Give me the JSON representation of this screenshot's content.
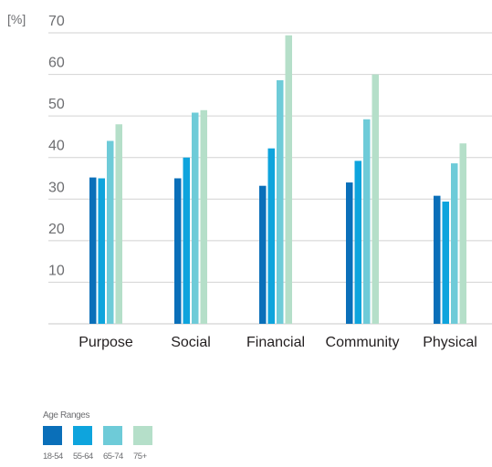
{
  "chart_data": {
    "type": "bar",
    "unit_label": "[%]",
    "categories": [
      "Purpose",
      "Social",
      "Financial",
      "Community",
      "Physical"
    ],
    "ylim": [
      0,
      70
    ],
    "yticks": [
      10,
      20,
      30,
      40,
      50,
      60,
      70
    ],
    "grid": true,
    "legend_title": "Age Ranges",
    "legend_position": "bottom-left",
    "series": [
      {
        "name": "18-54",
        "color": "#0a6fb9",
        "values": [
          35.2,
          35.0,
          33.2,
          34.0,
          30.8
        ]
      },
      {
        "name": "55-64",
        "color": "#0ea4dd",
        "values": [
          35.0,
          40.0,
          42.2,
          39.2,
          29.4
        ]
      },
      {
        "name": "65-74",
        "color": "#6ecbd8",
        "values": [
          44.0,
          50.8,
          58.6,
          49.2,
          38.6
        ]
      },
      {
        "name": "75+",
        "color": "#b5dfc9",
        "values": [
          48.0,
          51.4,
          69.4,
          60.0,
          43.4
        ]
      }
    ]
  }
}
